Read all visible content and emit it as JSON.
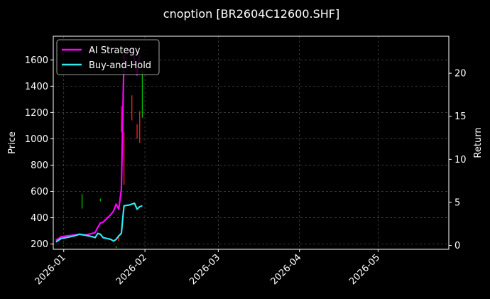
{
  "chart_data": {
    "type": "line",
    "title": "cnoption [BR2604C12600.SHF]",
    "xlabel": "",
    "ylabel": "Price",
    "y2label": "Return",
    "background": "#000000",
    "grid": true,
    "legend_position": "top-left",
    "x_range": [
      "2025-12-28",
      "2026-05-28"
    ],
    "x_ticks": [
      "2026-01",
      "2026-02",
      "2026-03",
      "2026-04",
      "2026-05"
    ],
    "x_tick_dates": [
      "2026-01-01",
      "2026-02-01",
      "2026-03-01",
      "2026-04-01",
      "2026-05-01"
    ],
    "y_range": [
      160,
      1780
    ],
    "y_ticks": [
      200,
      400,
      600,
      800,
      1000,
      1200,
      1400,
      1600
    ],
    "y2_range": [
      -0.45,
      24.3
    ],
    "y2_ticks": [
      0,
      5,
      10,
      15,
      20
    ],
    "candles": {
      "up_color": "#00c000",
      "down_color": "#ff2020",
      "items": [
        {
          "date": "2026-01-08",
          "low": 470,
          "high": 580,
          "dir": "up"
        },
        {
          "date": "2026-01-15",
          "low": 525,
          "high": 545,
          "dir": "up"
        },
        {
          "date": "2026-01-21",
          "low": 170,
          "high": 185,
          "dir": "up"
        },
        {
          "date": "2026-01-22",
          "low": 220,
          "high": 260,
          "dir": "down"
        },
        {
          "date": "2026-01-23",
          "low": 1050,
          "high": 1250,
          "dir": "down"
        },
        {
          "date": "2026-01-24",
          "low": 650,
          "high": 1050,
          "dir": "down"
        },
        {
          "date": "2026-01-27",
          "low": 1140,
          "high": 1330,
          "dir": "down"
        },
        {
          "date": "2026-01-29",
          "low": 1000,
          "high": 1110,
          "dir": "down"
        },
        {
          "date": "2026-01-30",
          "low": 970,
          "high": 1210,
          "dir": "down"
        },
        {
          "date": "2026-01-31",
          "low": 1160,
          "high": 1520,
          "dir": "up"
        }
      ]
    },
    "series": [
      {
        "name": "AI Strategy",
        "color": "#ff00ff",
        "points": [
          [
            "2025-12-29",
            0.6
          ],
          [
            "2025-12-31",
            1.0
          ],
          [
            "2026-01-02",
            1.1
          ],
          [
            "2026-01-05",
            1.2
          ],
          [
            "2026-01-07",
            1.3
          ],
          [
            "2026-01-09",
            1.2
          ],
          [
            "2026-01-12",
            1.4
          ],
          [
            "2026-01-13",
            1.5
          ],
          [
            "2026-01-14",
            2.1
          ],
          [
            "2026-01-15",
            2.6
          ],
          [
            "2026-01-16",
            2.7
          ],
          [
            "2026-01-19",
            3.6
          ],
          [
            "2026-01-20",
            4.0
          ],
          [
            "2026-01-21",
            4.8
          ],
          [
            "2026-01-22",
            4.2
          ],
          [
            "2026-01-23",
            6.5
          ],
          [
            "2026-01-24",
            22.0
          ],
          [
            "2026-01-26",
            22.6
          ],
          [
            "2026-01-27",
            23.0
          ],
          [
            "2026-01-28",
            21.5
          ],
          [
            "2026-01-29",
            19.8
          ],
          [
            "2026-01-30",
            22.2
          ]
        ]
      },
      {
        "name": "Buy-and-Hold",
        "color": "#33e6ee",
        "points": [
          [
            "2025-12-29",
            0.4
          ],
          [
            "2025-12-31",
            0.8
          ],
          [
            "2026-01-02",
            0.9
          ],
          [
            "2026-01-05",
            1.1
          ],
          [
            "2026-01-07",
            1.3
          ],
          [
            "2026-01-09",
            1.2
          ],
          [
            "2026-01-12",
            1.0
          ],
          [
            "2026-01-13",
            0.9
          ],
          [
            "2026-01-14",
            1.4
          ],
          [
            "2026-01-15",
            1.3
          ],
          [
            "2026-01-16",
            0.9
          ],
          [
            "2026-01-19",
            0.7
          ],
          [
            "2026-01-20",
            0.5
          ],
          [
            "2026-01-21",
            0.7
          ],
          [
            "2026-01-22",
            1.1
          ],
          [
            "2026-01-23",
            1.4
          ],
          [
            "2026-01-24",
            4.6
          ],
          [
            "2026-01-26",
            4.7
          ],
          [
            "2026-01-28",
            4.9
          ],
          [
            "2026-01-29",
            4.2
          ],
          [
            "2026-01-30",
            4.5
          ],
          [
            "2026-01-31",
            4.6
          ]
        ]
      }
    ]
  }
}
